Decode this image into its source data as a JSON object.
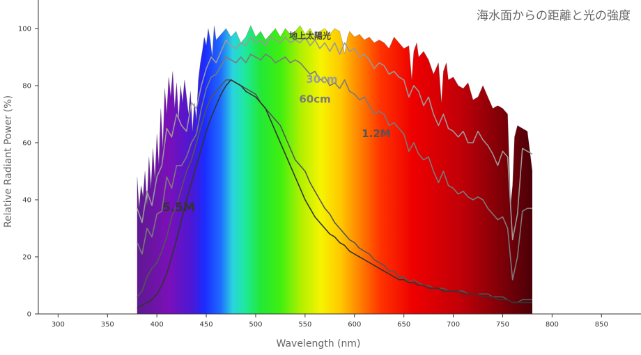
{
  "chart_data": {
    "type": "area",
    "title": "海水面からの距離と光の強度",
    "xlabel": "Wavelength (nm)",
    "ylabel": "Relative Radiant Power (%)",
    "xlim": [
      280,
      890
    ],
    "ylim": [
      0,
      110
    ],
    "x_ticks": [
      300,
      350,
      400,
      450,
      500,
      550,
      600,
      650,
      700,
      750,
      800,
      850
    ],
    "y_ticks": [
      0,
      20,
      40,
      60,
      80,
      100
    ],
    "grid": false,
    "fill": "visible-spectrum gradient under the surface curve",
    "colors": {
      "axis": "#333333",
      "surface_outline": "#444444",
      "curve_30cm": "#9a9a9a",
      "curve_60cm": "#7a7a7a",
      "curve_1_2m": "#555555",
      "curve_5_5m": "#333333"
    },
    "series": [
      {
        "name": "地上太陽光",
        "label_color": "#444444",
        "label_size": 12,
        "label_at": [
          555,
          96.5
        ],
        "x": [
          380,
          382,
          384,
          386,
          388,
          390,
          392,
          394,
          396,
          398,
          400,
          402,
          404,
          406,
          408,
          410,
          412,
          414,
          416,
          418,
          420,
          422,
          424,
          426,
          428,
          430,
          432,
          434,
          436,
          438,
          440,
          442,
          444,
          446,
          448,
          450,
          452,
          454,
          456,
          458,
          460,
          465,
          470,
          475,
          480,
          485,
          490,
          495,
          500,
          505,
          510,
          515,
          520,
          525,
          530,
          535,
          540,
          545,
          550,
          555,
          560,
          565,
          570,
          575,
          580,
          585,
          588,
          590,
          593,
          595,
          600,
          605,
          610,
          615,
          620,
          625,
          630,
          635,
          640,
          645,
          650,
          655,
          658,
          660,
          663,
          665,
          670,
          675,
          680,
          685,
          688,
          690,
          693,
          695,
          700,
          705,
          710,
          715,
          720,
          725,
          730,
          735,
          740,
          745,
          750,
          755,
          758,
          760,
          762,
          765,
          770,
          775,
          780
        ],
        "y": [
          48,
          37,
          45,
          41,
          50,
          38,
          55,
          44,
          58,
          47,
          63,
          52,
          72,
          58,
          79,
          70,
          83,
          76,
          85,
          72,
          81,
          68,
          80,
          74,
          82,
          76,
          70,
          78,
          64,
          74,
          68,
          82,
          88,
          92,
          97,
          94,
          100,
          96,
          90,
          101,
          96,
          98,
          100,
          97,
          99,
          95,
          97,
          101,
          97,
          99,
          96,
          98,
          100,
          97,
          100,
          98,
          99,
          101,
          98,
          100,
          97,
          99,
          100,
          98,
          100,
          99,
          95,
          91,
          97,
          99,
          97,
          98,
          96,
          97,
          95,
          96,
          95,
          93,
          97,
          95,
          93,
          94,
          82,
          92,
          95,
          90,
          92,
          89,
          84,
          88,
          74,
          85,
          88,
          82,
          83,
          80,
          79,
          81,
          75,
          76,
          80,
          76,
          72,
          73,
          72,
          70,
          38,
          45,
          62,
          66,
          65,
          64,
          50
        ],
        "values_note_units": "percent"
      },
      {
        "name": "30cm",
        "label_color": "#9a9a9a",
        "label_size": 15,
        "label_at": [
          567,
          81
        ],
        "x": [
          380,
          385,
          390,
          395,
          400,
          405,
          410,
          415,
          420,
          425,
          430,
          435,
          440,
          445,
          450,
          455,
          460,
          465,
          470,
          475,
          480,
          485,
          490,
          495,
          500,
          505,
          510,
          515,
          520,
          525,
          530,
          535,
          540,
          545,
          550,
          555,
          560,
          565,
          570,
          575,
          580,
          585,
          590,
          595,
          600,
          605,
          610,
          615,
          620,
          625,
          630,
          635,
          640,
          645,
          650,
          655,
          660,
          665,
          670,
          675,
          680,
          685,
          690,
          695,
          700,
          705,
          710,
          715,
          720,
          725,
          730,
          735,
          740,
          745,
          750,
          755,
          760,
          765,
          770,
          775,
          780
        ],
        "y": [
          37,
          32,
          43,
          38,
          48,
          52,
          65,
          62,
          70,
          66,
          64,
          74,
          72,
          80,
          86,
          90,
          88,
          92,
          96,
          94,
          93,
          95,
          94,
          97,
          95,
          96,
          94,
          97,
          96,
          95,
          97,
          95,
          96,
          95,
          97,
          94,
          96,
          93,
          95,
          92,
          95,
          91,
          95,
          92,
          93,
          90,
          91,
          89,
          86,
          88,
          87,
          84,
          85,
          83,
          82,
          76,
          80,
          78,
          73,
          76,
          70,
          66,
          70,
          65,
          64,
          62,
          64,
          60,
          60,
          64,
          61,
          59,
          56,
          52,
          57,
          55,
          26,
          35,
          58,
          57,
          56
        ]
      },
      {
        "name": "60cm",
        "label_color": "#7a7a7a",
        "label_size": 15,
        "label_at": [
          560,
          74
        ],
        "x": [
          380,
          385,
          390,
          395,
          400,
          405,
          410,
          415,
          420,
          425,
          430,
          435,
          440,
          445,
          450,
          455,
          460,
          465,
          470,
          475,
          480,
          485,
          490,
          495,
          500,
          505,
          510,
          515,
          520,
          525,
          530,
          535,
          540,
          545,
          550,
          555,
          560,
          565,
          570,
          575,
          580,
          585,
          590,
          595,
          600,
          605,
          610,
          615,
          620,
          625,
          630,
          635,
          640,
          645,
          650,
          655,
          660,
          665,
          670,
          675,
          680,
          685,
          690,
          695,
          700,
          705,
          710,
          715,
          720,
          725,
          730,
          735,
          740,
          745,
          750,
          755,
          760,
          765,
          770,
          775,
          780
        ],
        "y": [
          25,
          21,
          30,
          27,
          35,
          36,
          48,
          44,
          52,
          52,
          55,
          60,
          63,
          72,
          79,
          83,
          84,
          87,
          90,
          89,
          88,
          90,
          88,
          91,
          90,
          89,
          91,
          90,
          88,
          89,
          90,
          88,
          89,
          88,
          86,
          84,
          85,
          82,
          83,
          80,
          81,
          79,
          82,
          78,
          77,
          75,
          76,
          73,
          70,
          71,
          70,
          66,
          67,
          65,
          63,
          57,
          60,
          56,
          54,
          55,
          50,
          46,
          50,
          45,
          44,
          42,
          43,
          41,
          40,
          41,
          40,
          37,
          35,
          33,
          34,
          30,
          12,
          20,
          36,
          37,
          37
        ]
      },
      {
        "name": "1.2M",
        "label_color": "#555555",
        "label_size": 15,
        "label_at": [
          622,
          62
        ],
        "x": [
          380,
          385,
          390,
          395,
          400,
          405,
          410,
          415,
          420,
          425,
          430,
          435,
          440,
          445,
          450,
          455,
          460,
          465,
          470,
          475,
          480,
          485,
          490,
          495,
          500,
          505,
          510,
          515,
          520,
          525,
          530,
          535,
          540,
          545,
          550,
          555,
          560,
          565,
          570,
          575,
          580,
          585,
          590,
          595,
          600,
          605,
          610,
          615,
          620,
          625,
          630,
          635,
          640,
          645,
          650,
          655,
          660,
          665,
          670,
          675,
          680,
          685,
          690,
          695,
          700,
          705,
          710,
          715,
          720,
          725,
          730,
          735,
          740,
          745,
          750,
          755,
          760,
          765,
          770,
          775,
          780
        ],
        "y": [
          6,
          8,
          13,
          16,
          18,
          22,
          27,
          34,
          38,
          44,
          50,
          54,
          60,
          66,
          72,
          76,
          78,
          80,
          82,
          82,
          81,
          80,
          79,
          78,
          77,
          74,
          72,
          70,
          68,
          66,
          62,
          58,
          54,
          52,
          50,
          46,
          43,
          40,
          37,
          35,
          32,
          30,
          28,
          26,
          25,
          23,
          22,
          21,
          19,
          18,
          17,
          15,
          15,
          13,
          13,
          11,
          12,
          11,
          10,
          10,
          9,
          9,
          9,
          8,
          8,
          8,
          8,
          7,
          7,
          7,
          7,
          7,
          6,
          6,
          6,
          5,
          4,
          4,
          5,
          5,
          5
        ]
      },
      {
        "name": "5.5M",
        "label_color": "#333333",
        "label_size": 17,
        "label_at": [
          422,
          36
        ],
        "x": [
          380,
          385,
          390,
          395,
          400,
          405,
          410,
          415,
          420,
          425,
          430,
          435,
          440,
          445,
          450,
          455,
          460,
          465,
          470,
          475,
          480,
          485,
          490,
          495,
          500,
          505,
          510,
          515,
          520,
          525,
          530,
          535,
          540,
          545,
          550,
          555,
          560,
          565,
          570,
          575,
          580,
          585,
          590,
          595,
          600,
          605,
          610,
          615,
          620,
          625,
          630,
          635,
          640,
          645,
          650,
          655,
          660,
          665,
          670,
          675,
          680,
          685,
          690,
          695,
          700,
          705,
          710,
          715,
          720,
          725,
          730,
          735,
          740,
          745,
          750,
          755,
          760,
          765,
          770,
          775,
          780
        ],
        "y": [
          2,
          3,
          4,
          5,
          7,
          10,
          14,
          20,
          26,
          33,
          40,
          46,
          52,
          58,
          64,
          69,
          73,
          77,
          80,
          82,
          81,
          80,
          78,
          77,
          76,
          74,
          72,
          68,
          64,
          60,
          56,
          52,
          48,
          44,
          40,
          37,
          34,
          32,
          30,
          28,
          27,
          25,
          24,
          22,
          21,
          20,
          19,
          18,
          17,
          16,
          15,
          14,
          13,
          12,
          12,
          11,
          11,
          10,
          10,
          9,
          9,
          9,
          8,
          8,
          8,
          8,
          7,
          7,
          7,
          7,
          6,
          6,
          6,
          5,
          5,
          5,
          4,
          4,
          4,
          4,
          4
        ]
      }
    ]
  }
}
